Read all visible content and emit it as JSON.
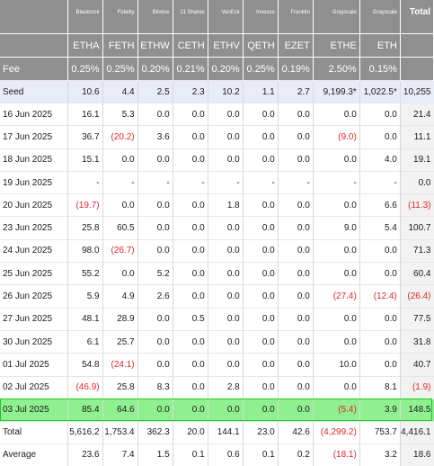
{
  "header": {
    "corner": "",
    "issuers": [
      "Blackrock",
      "Fidelity",
      "Bitwise",
      "21 Shares",
      "VanEck",
      "Invesco",
      "Franklin",
      "Grayscale",
      "Grayscale"
    ],
    "total_label": "Total",
    "tickers": [
      "ETHA",
      "FETH",
      "ETHW",
      "CETH",
      "ETHV",
      "QETH",
      "EZET",
      "ETHE",
      "ETH"
    ],
    "fee_label": "Fee",
    "fees": [
      "0.25%",
      "0.25%",
      "0.20%",
      "0.21%",
      "0.20%",
      "0.25%",
      "0.19%",
      "2.50%",
      "0.15%"
    ]
  },
  "rows": [
    {
      "label": "Seed",
      "cells": [
        "10.6",
        "4.4",
        "2.5",
        "2.3",
        "10.2",
        "1.1",
        "2.7",
        "9,199.3*",
        "1,022.5*",
        "10,255"
      ]
    },
    {
      "label": "16 Jun 2025",
      "cells": [
        "16.1",
        "5.3",
        "0.0",
        "0.0",
        "0.0",
        "0.0",
        "0.0",
        "0.0",
        "0.0",
        "21.4"
      ]
    },
    {
      "label": "17 Jun 2025",
      "cells": [
        "36.7",
        "(20.2)",
        "3.6",
        "0.0",
        "0.0",
        "0.0",
        "0.0",
        "(9.0)",
        "0.0",
        "11.1"
      ]
    },
    {
      "label": "18 Jun 2025",
      "cells": [
        "15.1",
        "0.0",
        "0.0",
        "0.0",
        "0.0",
        "0.0",
        "0.0",
        "0.0",
        "4.0",
        "19.1"
      ]
    },
    {
      "label": "19 Jun 2025",
      "cells": [
        "-",
        "-",
        "-",
        "-",
        "-",
        "-",
        "-",
        "-",
        "-",
        "0.0"
      ]
    },
    {
      "label": "20 Jun 2025",
      "cells": [
        "(19.7)",
        "0.0",
        "0.0",
        "0.0",
        "1.8",
        "0.0",
        "0.0",
        "0.0",
        "6.6",
        "(11.3)"
      ]
    },
    {
      "label": "23 Jun 2025",
      "cells": [
        "25.8",
        "60.5",
        "0.0",
        "0.0",
        "0.0",
        "0.0",
        "0.0",
        "9.0",
        "5.4",
        "100.7"
      ]
    },
    {
      "label": "24 Jun 2025",
      "cells": [
        "98.0",
        "(26.7)",
        "0.0",
        "0.0",
        "0.0",
        "0.0",
        "0.0",
        "0.0",
        "0.0",
        "71.3"
      ]
    },
    {
      "label": "25 Jun 2025",
      "cells": [
        "55.2",
        "0.0",
        "5.2",
        "0.0",
        "0.0",
        "0.0",
        "0.0",
        "0.0",
        "0.0",
        "60.4"
      ]
    },
    {
      "label": "26 Jun 2025",
      "cells": [
        "5.9",
        "4.9",
        "2.6",
        "0.0",
        "0.0",
        "0.0",
        "0.0",
        "(27.4)",
        "(12.4)",
        "(26.4)"
      ]
    },
    {
      "label": "27 Jun 2025",
      "cells": [
        "48.1",
        "28.9",
        "0.0",
        "0.5",
        "0.0",
        "0.0",
        "0.0",
        "0.0",
        "0.0",
        "77.5"
      ]
    },
    {
      "label": "30 Jun 2025",
      "cells": [
        "6.1",
        "25.7",
        "0.0",
        "0.0",
        "0.0",
        "0.0",
        "0.0",
        "0.0",
        "0.0",
        "31.8"
      ]
    },
    {
      "label": "01 Jul 2025",
      "cells": [
        "54.8",
        "(24.1)",
        "0.0",
        "0.0",
        "0.0",
        "0.0",
        "0.0",
        "10.0",
        "0.0",
        "40.7"
      ]
    },
    {
      "label": "02 Jul 2025",
      "cells": [
        "(46.9)",
        "25.8",
        "8.3",
        "0.0",
        "2.8",
        "0.0",
        "0.0",
        "0.0",
        "8.1",
        "(1.9)"
      ]
    },
    {
      "label": "03 Jul 2025",
      "cells": [
        "85.4",
        "64.6",
        "0.0",
        "0.0",
        "0.0",
        "0.0",
        "0.0",
        "(5.4)",
        "3.9",
        "148.5"
      ]
    }
  ],
  "summary": [
    {
      "label": "Total",
      "cells": [
        "5,616.2",
        "1,753.4",
        "362.3",
        "20.0",
        "144.1",
        "23.0",
        "42.6",
        "(4,299.2)",
        "753.7",
        "4,416.1"
      ]
    },
    {
      "label": "Average",
      "cells": [
        "23.6",
        "7.4",
        "1.5",
        "0.1",
        "0.6",
        "0.1",
        "0.2",
        "(18.1)",
        "3.2",
        "18.6"
      ]
    }
  ],
  "colors": {
    "header_bg": "#8f8f8f",
    "negative": "#e0262b",
    "seed_bg": "#e8ecf7",
    "highlight_bg": "#8ff08f",
    "highlight_border": "#1dc91d"
  }
}
